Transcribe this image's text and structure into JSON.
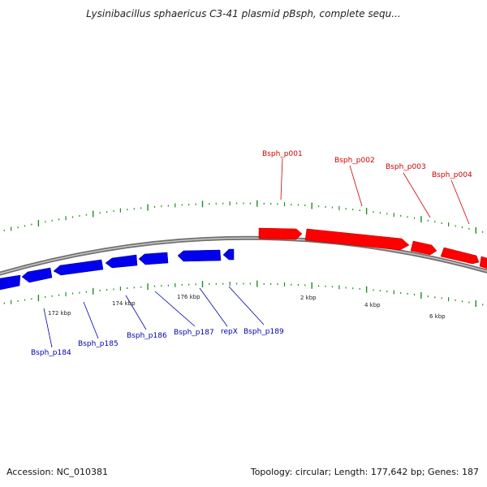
{
  "title": "Lysinibacillus sphaericus C3-41 plasmid pBsph, complete sequ...",
  "footer": {
    "accession": "Accession: NC_010381",
    "stats": "Topology: circular; Length: 177,642 bp; Genes: 187"
  },
  "colors": {
    "forward_gene": "#ff0000",
    "reverse_gene": "#0000ee",
    "forward_label": "#cc0000",
    "reverse_label": "#0000aa",
    "tick": "#228b22",
    "backbone": "#808080"
  },
  "forward_genes": [
    "Bsph_p001",
    "Bsph_p002",
    "Bsph_p003",
    "Bsph_p004"
  ],
  "reverse_genes": [
    "Bsph_p184",
    "Bsph_p185",
    "Bsph_p186",
    "Bsph_p187",
    "repX",
    "Bsph_p189"
  ],
  "kbp_labels": [
    "172 kbp",
    "174 kbp",
    "176 kbp",
    "2 kbp",
    "4 kbp",
    "6 kbp"
  ]
}
